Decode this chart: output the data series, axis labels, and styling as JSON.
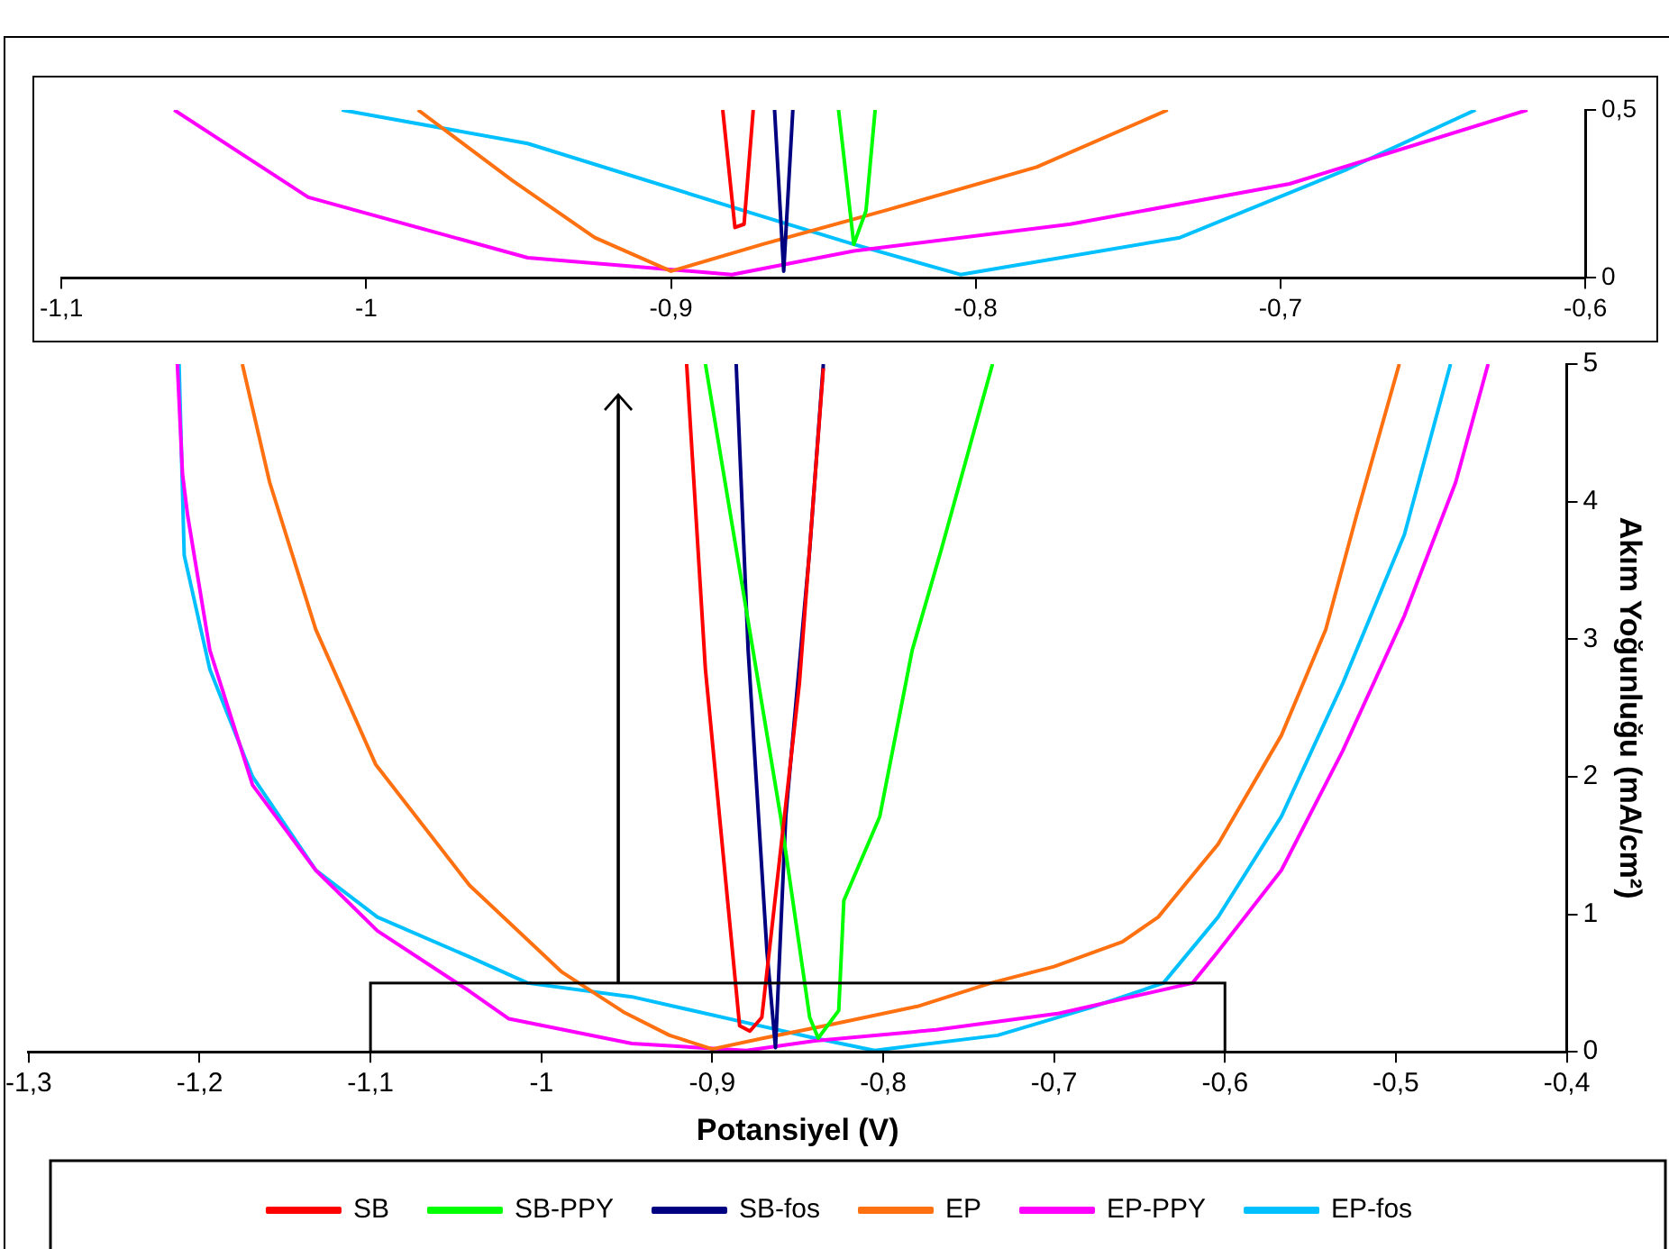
{
  "chart_data": [
    {
      "type": "line",
      "marker": "none",
      "grid": false,
      "xlim": [
        -1.1,
        -0.6
      ],
      "ylim": [
        0,
        0.5
      ],
      "xticks": [
        {
          "value": -1.1,
          "label": "-1,1"
        },
        -1,
        {
          "value": -0.9,
          "label": "-0,9"
        },
        {
          "value": -0.8,
          "label": "-0,8"
        },
        {
          "value": -0.7,
          "label": "-0,7"
        },
        {
          "value": -0.6,
          "label": "-0,6"
        }
      ],
      "yticks": [
        0,
        {
          "value": 0.5,
          "label": "0,5"
        }
      ],
      "series": [
        {
          "color": "#ff0000",
          "x": [
            -0.883,
            -0.879,
            -0.876,
            -0.873
          ],
          "values": [
            0.5,
            0.15,
            0.16,
            0.5
          ]
        },
        {
          "color": "#00ff00",
          "x": [
            -0.845,
            -0.84,
            -0.836,
            -0.833
          ],
          "values": [
            0.5,
            0.1,
            0.2,
            0.5
          ]
        },
        {
          "color": "#000080",
          "x": [
            -0.866,
            -0.863,
            -0.86
          ],
          "values": [
            0.5,
            0.02,
            0.5
          ]
        },
        {
          "color": "#ff7010",
          "x": [
            -0.983,
            -0.952,
            -0.925,
            -0.9,
            -0.87,
            -0.83,
            -0.78,
            -0.737
          ],
          "values": [
            0.5,
            0.29,
            0.12,
            0.02,
            0.1,
            0.2,
            0.33,
            0.5
          ]
        },
        {
          "color": "#ff00ff",
          "x": [
            -1.063,
            -1.019,
            -0.947,
            -0.88,
            -0.84,
            -0.769,
            -0.697,
            -0.619
          ],
          "values": [
            0.5,
            0.24,
            0.06,
            0.01,
            0.08,
            0.16,
            0.28,
            0.5
          ]
        },
        {
          "color": "#00c0ff",
          "x": [
            -1.008,
            -0.947,
            -0.876,
            -0.84,
            -0.805,
            -0.733,
            -0.679,
            -0.636
          ],
          "values": [
            0.5,
            0.4,
            0.2,
            0.1,
            0.01,
            0.12,
            0.32,
            0.5
          ]
        }
      ]
    },
    {
      "type": "line",
      "marker": "none",
      "grid": false,
      "legend": "bottom",
      "xlabel": "Potansiyel (V)",
      "ylabel": "Akım Yoğunluğu (mA/cm²)",
      "xlim": [
        -1.3,
        -0.4
      ],
      "ylim": [
        0,
        5
      ],
      "xticks": [
        {
          "value": -1.3,
          "label": "-1,3"
        },
        {
          "value": -1.2,
          "label": "-1,2"
        },
        {
          "value": -1.1,
          "label": "-1,1"
        },
        -1,
        {
          "value": -0.9,
          "label": "-0,9"
        },
        {
          "value": -0.8,
          "label": "-0,8"
        },
        {
          "value": -0.7,
          "label": "-0,7"
        },
        {
          "value": -0.6,
          "label": "-0,6"
        },
        {
          "value": -0.5,
          "label": "-0,5"
        },
        {
          "value": -0.4,
          "label": "-0,4"
        }
      ],
      "yticks": [
        0,
        1,
        2,
        3,
        4,
        5
      ],
      "series": [
        {
          "name": "SB",
          "color": "#ff0000",
          "x": [
            -0.915,
            -0.904,
            -0.884,
            -0.878,
            -0.871,
            -0.849,
            -0.835
          ],
          "values": [
            5,
            2.78,
            0.19,
            0.15,
            0.25,
            2.68,
            4.97
          ]
        },
        {
          "name": "SB-PPY",
          "color": "#00ff00",
          "x": [
            -0.904,
            -0.86,
            -0.843,
            -0.838,
            -0.826,
            -0.823,
            -0.802,
            -0.783,
            -0.766,
            -0.736
          ],
          "values": [
            5,
            1.71,
            0.25,
            0.1,
            0.3,
            1.1,
            1.71,
            2.92,
            3.65,
            5
          ]
        },
        {
          "name": "SB-fos",
          "color": "#000080",
          "x": [
            -0.886,
            -0.879,
            -0.868,
            -0.863,
            -0.857,
            -0.843,
            -0.835
          ],
          "values": [
            5,
            2.92,
            0.73,
            0.03,
            1.71,
            3.65,
            5
          ]
        },
        {
          "name": "EP",
          "color": "#ff7010",
          "x": [
            -1.175,
            -1.159,
            -1.132,
            -1.097,
            -1.042,
            -0.988,
            -0.952,
            -0.925,
            -0.9,
            -0.87,
            -0.83,
            -0.78,
            -0.737,
            -0.7,
            -0.66,
            -0.639,
            -0.604,
            -0.567,
            -0.541,
            -0.523,
            -0.498
          ],
          "values": [
            5,
            4.14,
            3.07,
            2.09,
            1.21,
            0.58,
            0.29,
            0.12,
            0.02,
            0.1,
            0.2,
            0.33,
            0.5,
            0.62,
            0.8,
            0.98,
            1.51,
            2.3,
            3.07,
            3.9,
            5
          ]
        },
        {
          "name": "EP-PPY",
          "color": "#ff00ff",
          "x": [
            -1.213,
            -1.21,
            -1.207,
            -1.194,
            -1.169,
            -1.132,
            -1.096,
            -1.042,
            -1.019,
            -0.947,
            -0.88,
            -0.84,
            -0.769,
            -0.697,
            -0.619,
            -0.604,
            -0.567,
            -0.531,
            -0.495,
            -0.465,
            -0.446
          ],
          "values": [
            5,
            4.2,
            3.9,
            2.92,
            1.94,
            1.32,
            0.88,
            0.44,
            0.24,
            0.06,
            0.01,
            0.08,
            0.16,
            0.28,
            0.5,
            0.73,
            1.32,
            2.19,
            3.17,
            4.14,
            5
          ]
        },
        {
          "name": "EP-fos",
          "color": "#00c0ff",
          "x": [
            -1.212,
            -1.209,
            -1.194,
            -1.169,
            -1.132,
            -1.096,
            -1.042,
            -1.008,
            -0.947,
            -0.876,
            -0.84,
            -0.805,
            -0.733,
            -0.679,
            -0.636,
            -0.604,
            -0.567,
            -0.531,
            -0.495,
            -0.468
          ],
          "values": [
            5,
            3.61,
            2.78,
            2,
            1.32,
            0.98,
            0.69,
            0.5,
            0.4,
            0.2,
            0.1,
            0.01,
            0.12,
            0.32,
            0.5,
            0.98,
            1.71,
            2.68,
            3.76,
            5
          ]
        }
      ]
    }
  ]
}
